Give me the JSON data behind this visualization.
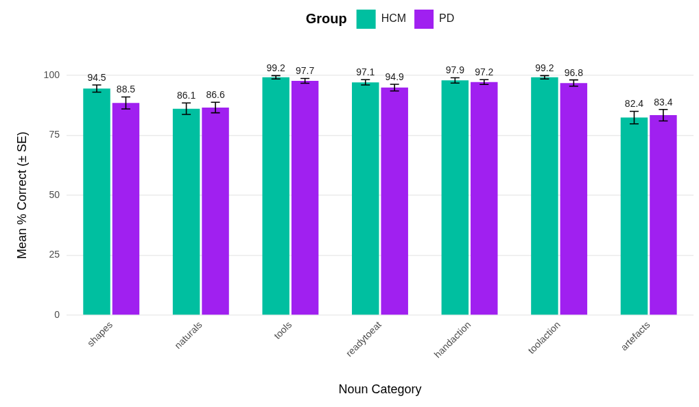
{
  "chart_data": {
    "type": "bar",
    "xlabel": "Noun Category",
    "ylabel": "Mean % Correct (± SE)",
    "legend_title": "Group",
    "categories": [
      "shapes",
      "naturals",
      "tools",
      "readytoeat",
      "handaction",
      "toolaction",
      "artefacts"
    ],
    "series": [
      {
        "name": "HCM",
        "color": "#00bfa0",
        "values": [
          94.5,
          86.1,
          99.2,
          97.1,
          97.9,
          99.2,
          82.4
        ],
        "errors": [
          1.5,
          2.4,
          0.7,
          1.1,
          1.1,
          0.7,
          2.6
        ]
      },
      {
        "name": "PD",
        "color": "#a020f0",
        "values": [
          88.5,
          86.6,
          97.7,
          94.9,
          97.2,
          96.8,
          83.4
        ],
        "errors": [
          2.5,
          2.2,
          1.0,
          1.4,
          1.0,
          1.3,
          2.4
        ]
      }
    ],
    "ylim": [
      0,
      100
    ],
    "yticks": [
      0,
      25,
      50,
      75,
      100
    ],
    "grid": "y",
    "legend": "top",
    "data_labels": true
  }
}
